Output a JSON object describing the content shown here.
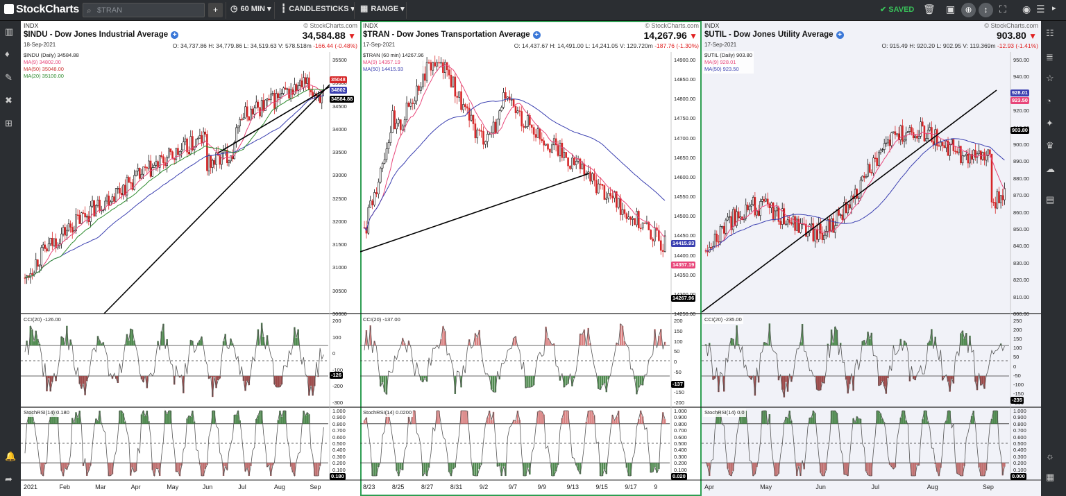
{
  "app": {
    "logo": "StockCharts",
    "search_placeholder": "$TRAN",
    "period": "60 MIN",
    "chart_type": "CANDLESTICKS",
    "range": "RANGE",
    "saved": "SAVED"
  },
  "charts": [
    {
      "exchange": "INDX",
      "watermark": "© StockCharts.com",
      "title": "$INDU - Dow Jones Industrial Average",
      "price": "34,584.88",
      "date": "18-Sep-2021",
      "ohlc": {
        "o": "O: 34,737.86",
        "h": "H: 34,779.86",
        "l": "L: 34,519.63",
        "v": "V: 578.518m",
        "chg": "-166.44 (-0.48%)"
      },
      "legend": [
        "$INDU (Daily) 34584.88",
        "MA(9) 34802.00",
        "MA(50) 35048.00",
        "MA(20) 35100.00"
      ],
      "yticks": [
        "35500",
        "35000",
        "34500",
        "34000",
        "33500",
        "33000",
        "32500",
        "32000",
        "31500",
        "31000",
        "30500",
        "30000"
      ],
      "tags": [
        "35048",
        "34802",
        "34584.88"
      ],
      "cci_label": "CCI(20) -126.00",
      "cci_ticks": [
        "200",
        "100",
        "0",
        "-100",
        "-200",
        "-300"
      ],
      "cci_tag": "-126",
      "rsi_label": "StochRSI(14) 0.180",
      "rsi_ticks": [
        "1.000",
        "0.900",
        "0.800",
        "0.700",
        "0.600",
        "0.500",
        "0.400",
        "0.300",
        "0.200",
        "0.100",
        "0.000"
      ],
      "rsi_tag": "0.180",
      "xticks": [
        "2021",
        "Feb",
        "Mar",
        "Apr",
        "May",
        "Jun",
        "Jul",
        "Aug",
        "Sep"
      ]
    },
    {
      "exchange": "INDX",
      "watermark": "© StockCharts.com",
      "title": "$TRAN - Dow Jones Transportation Average",
      "price": "14,267.96",
      "date": "17-Sep-2021",
      "ohlc": {
        "o": "O: 14,437.67",
        "h": "H: 14,491.00",
        "l": "L: 14,241.05",
        "v": "V: 129.720m",
        "chg": "-187.76 (-1.30%)"
      },
      "legend": [
        "$TRAN (60 min) 14267.96",
        "MA(9) 14357.19",
        "MA(50) 14415.93"
      ],
      "yticks": [
        "14900.00",
        "14850.00",
        "14800.00",
        "14750.00",
        "14700.00",
        "14650.00",
        "14600.00",
        "14550.00",
        "14500.00",
        "14450.00",
        "14400.00",
        "14350.00",
        "14300.00",
        "14250.00"
      ],
      "tags": [
        "14415.93",
        "14357.19",
        "14267.96"
      ],
      "cci_label": "CCI(20) -137.00",
      "cci_ticks": [
        "200",
        "150",
        "100",
        "50",
        "0",
        "-50",
        "-100",
        "-150",
        "-200"
      ],
      "cci_tag": "-137",
      "rsi_label": "StochRSI(14) 0.0200",
      "rsi_ticks": [
        "1.000",
        "0.900",
        "0.800",
        "0.700",
        "0.600",
        "0.500",
        "0.400",
        "0.300",
        "0.200",
        "0.100",
        "0.000"
      ],
      "rsi_tag": "0.020",
      "xticks": [
        "8/23",
        "8/25",
        "8/27",
        "8/31",
        "9/2",
        "9/7",
        "9/9",
        "9/13",
        "9/15",
        "9/17",
        "9"
      ]
    },
    {
      "exchange": "INDX",
      "watermark": "© StockCharts.com",
      "title": "$UTIL - Dow Jones Utility Average",
      "price": "903.80",
      "date": "17-Sep-2021",
      "ohlc": {
        "o": "O: 915.49",
        "h": "H: 920.20",
        "l": "L: 902.95",
        "v": "V: 119.369m",
        "chg": "-12.93 (-1.41%)"
      },
      "legend": [
        "$UTIL (Daily) 903.80",
        "MA(9) 928.01",
        "MA(50) 923.50"
      ],
      "yticks": [
        "950.00",
        "940.00",
        "930.00",
        "920.00",
        "910.00",
        "900.00",
        "890.00",
        "880.00",
        "870.00",
        "860.00",
        "850.00",
        "840.00",
        "830.00",
        "820.00",
        "810.00",
        "800.00"
      ],
      "tags": [
        "928.01",
        "923.50",
        "903.80"
      ],
      "cci_label": "CCI(20) -235.00",
      "cci_ticks": [
        "250",
        "200",
        "150",
        "100",
        "50",
        "0",
        "-50",
        "-100",
        "-150",
        "-200"
      ],
      "cci_tag": "-235",
      "rsi_label": "StochRSI(14) 0.0",
      "rsi_ticks": [
        "1.000",
        "0.900",
        "0.800",
        "0.700",
        "0.600",
        "0.500",
        "0.400",
        "0.300",
        "0.200",
        "0.100",
        "0.000"
      ],
      "rsi_tag": "0.000",
      "xticks": [
        "Apr",
        "May",
        "Jun",
        "Jul",
        "Aug",
        "Sep"
      ]
    }
  ],
  "colors": {
    "up": "#111111",
    "down": "#d62728",
    "ma_fast": "#e8467a",
    "ma_slow": "#3a3fb0",
    "ma_mid": "#2e8b2e",
    "cci_pos_green": "#4f8a4f",
    "cci_neg_red": "#9b4a4a",
    "accent": "#2e9e52"
  }
}
